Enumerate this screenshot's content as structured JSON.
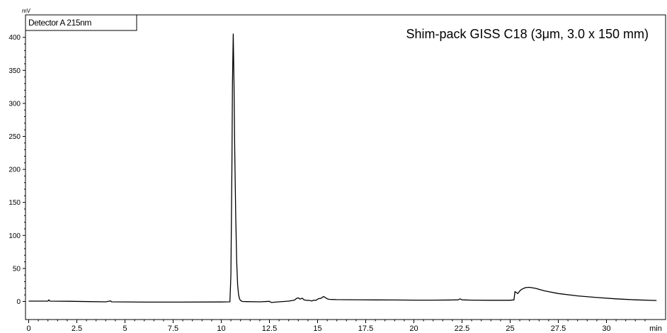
{
  "chart_data": {
    "type": "line",
    "ylabel": "mV",
    "xlabel": "min",
    "xlim": [
      0,
      32.6
    ],
    "ylim": [
      -5,
      415
    ],
    "x_ticks": [
      0,
      2.5,
      5,
      7.5,
      10,
      12.5,
      15,
      17.5,
      20,
      22.5,
      25,
      27.5,
      30
    ],
    "x_tick_labels": [
      "0",
      "2.5",
      "5",
      "7.5",
      "10",
      "12.5",
      "15",
      "17.5",
      "20",
      "22.5",
      "25",
      "27.5",
      "30"
    ],
    "y_ticks": [
      0,
      50,
      100,
      150,
      200,
      250,
      300,
      350,
      400
    ],
    "y_tick_labels": [
      "0",
      "50",
      "100",
      "150",
      "200",
      "250",
      "300",
      "350",
      "400"
    ],
    "legend": {
      "text": "Detector A 215nm",
      "position": "top-left"
    },
    "annotation": "Shim-pack GISS C18 (3μm, 3.0 x 150 mm)",
    "grid": false,
    "series": [
      {
        "color": "#000000",
        "x": [
          0,
          1.0,
          1.05,
          1.1,
          2.0,
          4.0,
          4.2,
          4.25,
          4.3,
          6.0,
          8.0,
          10.0,
          10.45,
          10.5,
          10.55,
          10.58,
          10.62,
          10.66,
          10.7,
          10.75,
          10.8,
          10.85,
          10.9,
          10.95,
          11.0,
          11.05,
          11.1,
          11.3,
          12.0,
          12.5,
          12.6,
          13.0,
          13.5,
          13.8,
          13.9,
          14.0,
          14.1,
          14.2,
          14.3,
          14.4,
          14.6,
          14.7,
          14.8,
          14.9,
          15.0,
          15.1,
          15.2,
          15.3,
          15.4,
          15.5,
          15.6,
          15.8,
          16.0,
          17.0,
          18.0,
          19.0,
          20.0,
          21.0,
          22.0,
          22.3,
          22.4,
          22.5,
          23.0,
          24.0,
          25.0,
          25.2,
          25.25,
          25.3,
          25.4,
          25.5,
          25.6,
          25.8,
          26.0,
          26.3,
          26.8,
          27.5,
          28.5,
          29.5,
          30.5,
          31.5,
          32.6
        ],
        "y": [
          0.5,
          0.5,
          2.5,
          0.5,
          0.3,
          -0.5,
          0.5,
          1.0,
          -0.5,
          -1.0,
          -1.0,
          -0.8,
          -0.5,
          40,
          200,
          330,
          405,
          330,
          230,
          130,
          60,
          25,
          10,
          4,
          1.5,
          0.5,
          0.0,
          -0.2,
          -0.5,
          0.2,
          -1.5,
          -0.5,
          0.5,
          2.0,
          4.5,
          5.5,
          3.5,
          5.0,
          2.5,
          1.8,
          1.5,
          0.8,
          2.0,
          1.5,
          3.5,
          4.5,
          5.0,
          7.5,
          6.0,
          4.0,
          3.2,
          3.0,
          2.8,
          2.6,
          2.4,
          2.2,
          2.0,
          2.0,
          2.2,
          2.5,
          4.0,
          2.5,
          2.0,
          1.8,
          1.8,
          2.5,
          15.0,
          14.0,
          12.0,
          16.0,
          18.5,
          21.0,
          21.5,
          20.0,
          16.0,
          12.0,
          8.5,
          6.0,
          4.0,
          2.5,
          1.5
        ]
      }
    ]
  }
}
